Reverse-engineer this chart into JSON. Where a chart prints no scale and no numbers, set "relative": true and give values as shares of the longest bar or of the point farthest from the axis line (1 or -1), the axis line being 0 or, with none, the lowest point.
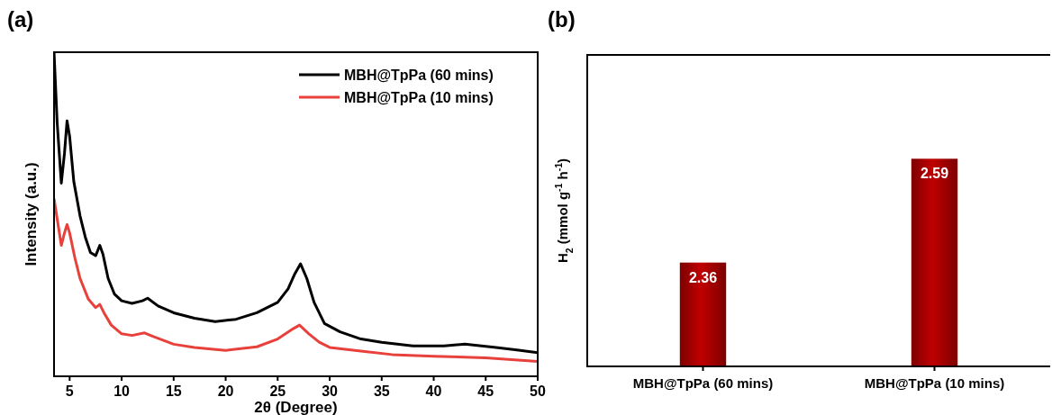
{
  "chart_data": [
    {
      "type": "line",
      "title": "(a)",
      "xlabel": "2θ (Degree)",
      "ylabel": "Intensity (a.u.)",
      "relative": true,
      "xlim": [
        3.5,
        50
      ],
      "xticks": [
        5,
        10,
        15,
        20,
        25,
        30,
        35,
        40,
        45,
        50
      ],
      "legend": "top right",
      "line_style": "solid",
      "series": [
        {
          "name": "MBH@TpPa (60 mins)",
          "color": "#000000",
          "x": [
            3.5,
            3.8,
            4.2,
            4.5,
            4.75,
            5.0,
            5.4,
            6.0,
            6.5,
            7.0,
            7.5,
            7.9,
            8.2,
            8.7,
            9.3,
            10,
            11,
            12,
            12.5,
            13.5,
            15,
            17,
            19,
            21,
            23,
            25,
            26,
            26.6,
            27.2,
            27.8,
            28.5,
            29.5,
            31,
            33,
            35,
            38,
            41,
            43,
            46,
            48,
            50
          ],
          "values": [
            1.0,
            0.783,
            0.596,
            0.687,
            0.788,
            0.74,
            0.601,
            0.495,
            0.43,
            0.382,
            0.372,
            0.404,
            0.377,
            0.302,
            0.254,
            0.233,
            0.225,
            0.233,
            0.241,
            0.217,
            0.196,
            0.179,
            0.169,
            0.176,
            0.196,
            0.228,
            0.27,
            0.313,
            0.347,
            0.302,
            0.228,
            0.163,
            0.137,
            0.115,
            0.105,
            0.094,
            0.094,
            0.099,
            0.089,
            0.081,
            0.073
          ]
        },
        {
          "name": "MBH@TpPa (10 mins)",
          "color": "#e8413c",
          "x": [
            3.5,
            4.2,
            4.5,
            4.75,
            5.0,
            5.5,
            6.0,
            6.8,
            7.5,
            7.9,
            8.3,
            9,
            10,
            11,
            12.2,
            13,
            15,
            17,
            20,
            23,
            25,
            26.5,
            27.1,
            28,
            29,
            30,
            33,
            36,
            40,
            45,
            50
          ],
          "values": [
            0.548,
            0.404,
            0.442,
            0.468,
            0.442,
            0.366,
            0.302,
            0.238,
            0.212,
            0.222,
            0.196,
            0.158,
            0.131,
            0.126,
            0.134,
            0.123,
            0.099,
            0.089,
            0.08,
            0.091,
            0.115,
            0.147,
            0.158,
            0.131,
            0.105,
            0.089,
            0.078,
            0.067,
            0.062,
            0.057,
            0.046
          ]
        }
      ]
    },
    {
      "type": "bar",
      "title": "(b)",
      "ylabel": "H$_{2}$ (mmol g$^{-1}$ h$^{-1}$)",
      "categories": [
        "MBH@TpPa (60 mins)",
        "MBH@TpPa (10 mins)"
      ],
      "values": [
        2.36,
        2.59
      ],
      "color": "#c00000",
      "ylim": [
        2.13,
        2.82
      ],
      "tick_labels": "x",
      "data_labels": true
    }
  ]
}
